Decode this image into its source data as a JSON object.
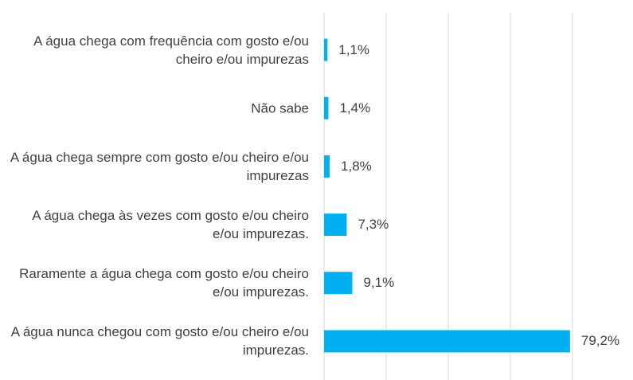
{
  "chart_data": {
    "type": "barh",
    "categories": [
      "A água chega com frequência com gosto e/ou cheiro e/ou impurezas",
      "Não sabe",
      "A água chega sempre com gosto e/ou cheiro e/ou impurezas",
      "A água chega às vezes com gosto e/ou cheiro e/ou impurezas.",
      "Raramente a água chega com gosto e/ou cheiro e/ou impurezas.",
      "A água nunca chegou com gosto e/ou cheiro e/ou impurezas."
    ],
    "values": [
      1.1,
      1.4,
      1.8,
      7.3,
      9.1,
      79.2
    ],
    "value_labels": [
      "1,1%",
      "1,4%",
      "1,8%",
      "7,3%",
      "9,1%",
      "79,2%"
    ],
    "color": "#00b0f0",
    "xlim": [
      0,
      80
    ],
    "xticks": [
      0,
      20,
      40,
      60,
      80
    ],
    "grid": true
  }
}
